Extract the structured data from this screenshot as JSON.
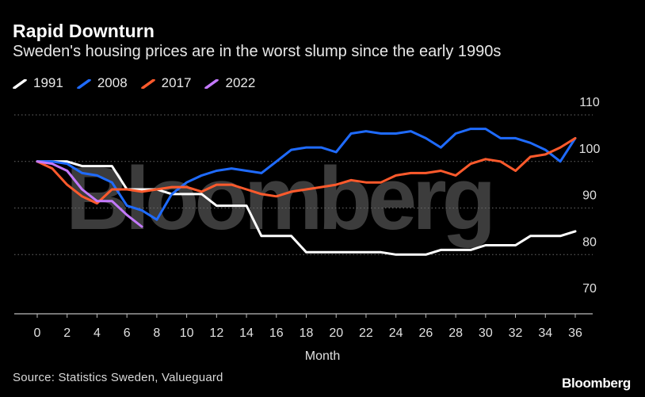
{
  "header": {
    "title": "Rapid Downturn",
    "subtitle": "Sweden's housing prices are in the worst slump since the early 1990s"
  },
  "footer": {
    "source": "Source: Statistics Sweden, Valueguard",
    "brand": "Bloomberg"
  },
  "watermark": "Bloomberg",
  "colors": {
    "background": "#000000",
    "1991": "#ffffff",
    "2008": "#1f6bff",
    "2017": "#ff5a2c",
    "2022": "#c479ff",
    "grid": "#6a6a6a"
  },
  "chart_data": {
    "type": "line",
    "title": "Rapid Downturn",
    "subtitle": "Sweden's housing prices are in the worst slump since the early 1990s",
    "xlabel": "Month",
    "ylabel": "",
    "xlim": [
      0,
      36
    ],
    "ylim": [
      70,
      110
    ],
    "xticks": [
      0,
      2,
      4,
      6,
      8,
      10,
      12,
      14,
      16,
      18,
      20,
      22,
      24,
      26,
      28,
      30,
      32,
      34,
      36
    ],
    "yticks": [
      70,
      80,
      90,
      100,
      110
    ],
    "yaxis_side": "right",
    "grid": "horizontal dotted",
    "legend_position": "top-left",
    "series": [
      {
        "name": "1991",
        "color": "#ffffff",
        "x": [
          0,
          1,
          2,
          3,
          4,
          5,
          6,
          7,
          8,
          9,
          10,
          11,
          12,
          13,
          14,
          15,
          16,
          17,
          18,
          19,
          20,
          21,
          22,
          23,
          24,
          25,
          26,
          27,
          28,
          29,
          30,
          31,
          32,
          33,
          34,
          35,
          36
        ],
        "values": [
          100,
          100,
          100,
          99,
          99,
          99,
          94,
          94,
          94,
          93,
          93,
          93,
          90.5,
          90.5,
          90.5,
          84,
          84,
          84,
          80.5,
          80.5,
          80.5,
          80.5,
          80.5,
          80.5,
          80,
          80,
          80,
          81,
          81,
          81,
          82,
          82,
          82,
          84,
          84,
          84,
          85
        ]
      },
      {
        "name": "2008",
        "color": "#1f6bff",
        "x": [
          0,
          1,
          2,
          3,
          4,
          5,
          6,
          7,
          8,
          9,
          10,
          11,
          12,
          13,
          14,
          15,
          16,
          17,
          18,
          19,
          20,
          21,
          22,
          23,
          24,
          25,
          26,
          27,
          28,
          29,
          30,
          31,
          32,
          33,
          34,
          35,
          36
        ],
        "values": [
          100,
          100,
          99.5,
          97.5,
          97,
          95.5,
          90.5,
          89.5,
          87.5,
          93,
          95.5,
          97,
          98,
          98.5,
          98,
          97.5,
          100,
          102.5,
          103,
          103,
          102,
          106,
          106.5,
          106,
          106,
          106.5,
          105,
          103,
          106,
          107,
          107,
          105,
          105,
          104,
          102.5,
          100,
          105
        ]
      },
      {
        "name": "2017",
        "color": "#ff5a2c",
        "x": [
          0,
          1,
          2,
          3,
          4,
          5,
          6,
          7,
          8,
          9,
          10,
          11,
          12,
          13,
          14,
          15,
          16,
          17,
          18,
          19,
          20,
          21,
          22,
          23,
          24,
          25,
          26,
          27,
          28,
          29,
          30,
          31,
          32,
          33,
          34,
          35,
          36
        ],
        "values": [
          100,
          98.5,
          95,
          92.5,
          91,
          94,
          94,
          93.5,
          94,
          94.5,
          94.5,
          93.5,
          95,
          95,
          94,
          93,
          92.5,
          93.5,
          94,
          94.5,
          95,
          96,
          95.5,
          95.5,
          97,
          97.5,
          97.5,
          98,
          97,
          99.5,
          100.5,
          100,
          98,
          101,
          101.5,
          103,
          105
        ]
      },
      {
        "name": "2022",
        "color": "#c479ff",
        "x": [
          0,
          1,
          2,
          3,
          4,
          5,
          6,
          7
        ],
        "values": [
          100,
          99.5,
          98,
          94,
          91.5,
          91.5,
          88.5,
          86
        ]
      }
    ]
  }
}
